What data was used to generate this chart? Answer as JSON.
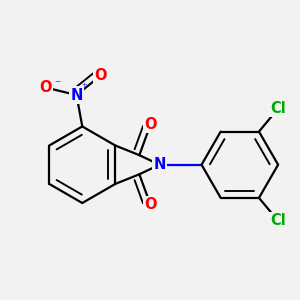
{
  "bg_color": "#f2f2f2",
  "bond_color": "#000000",
  "bond_width": 1.6,
  "atom_colors": {
    "O": "#ff0000",
    "N_amine": "#0000ff",
    "N_nitro": "#0000ff",
    "Cl": "#00aa00"
  },
  "font_size_atom": 10.5
}
